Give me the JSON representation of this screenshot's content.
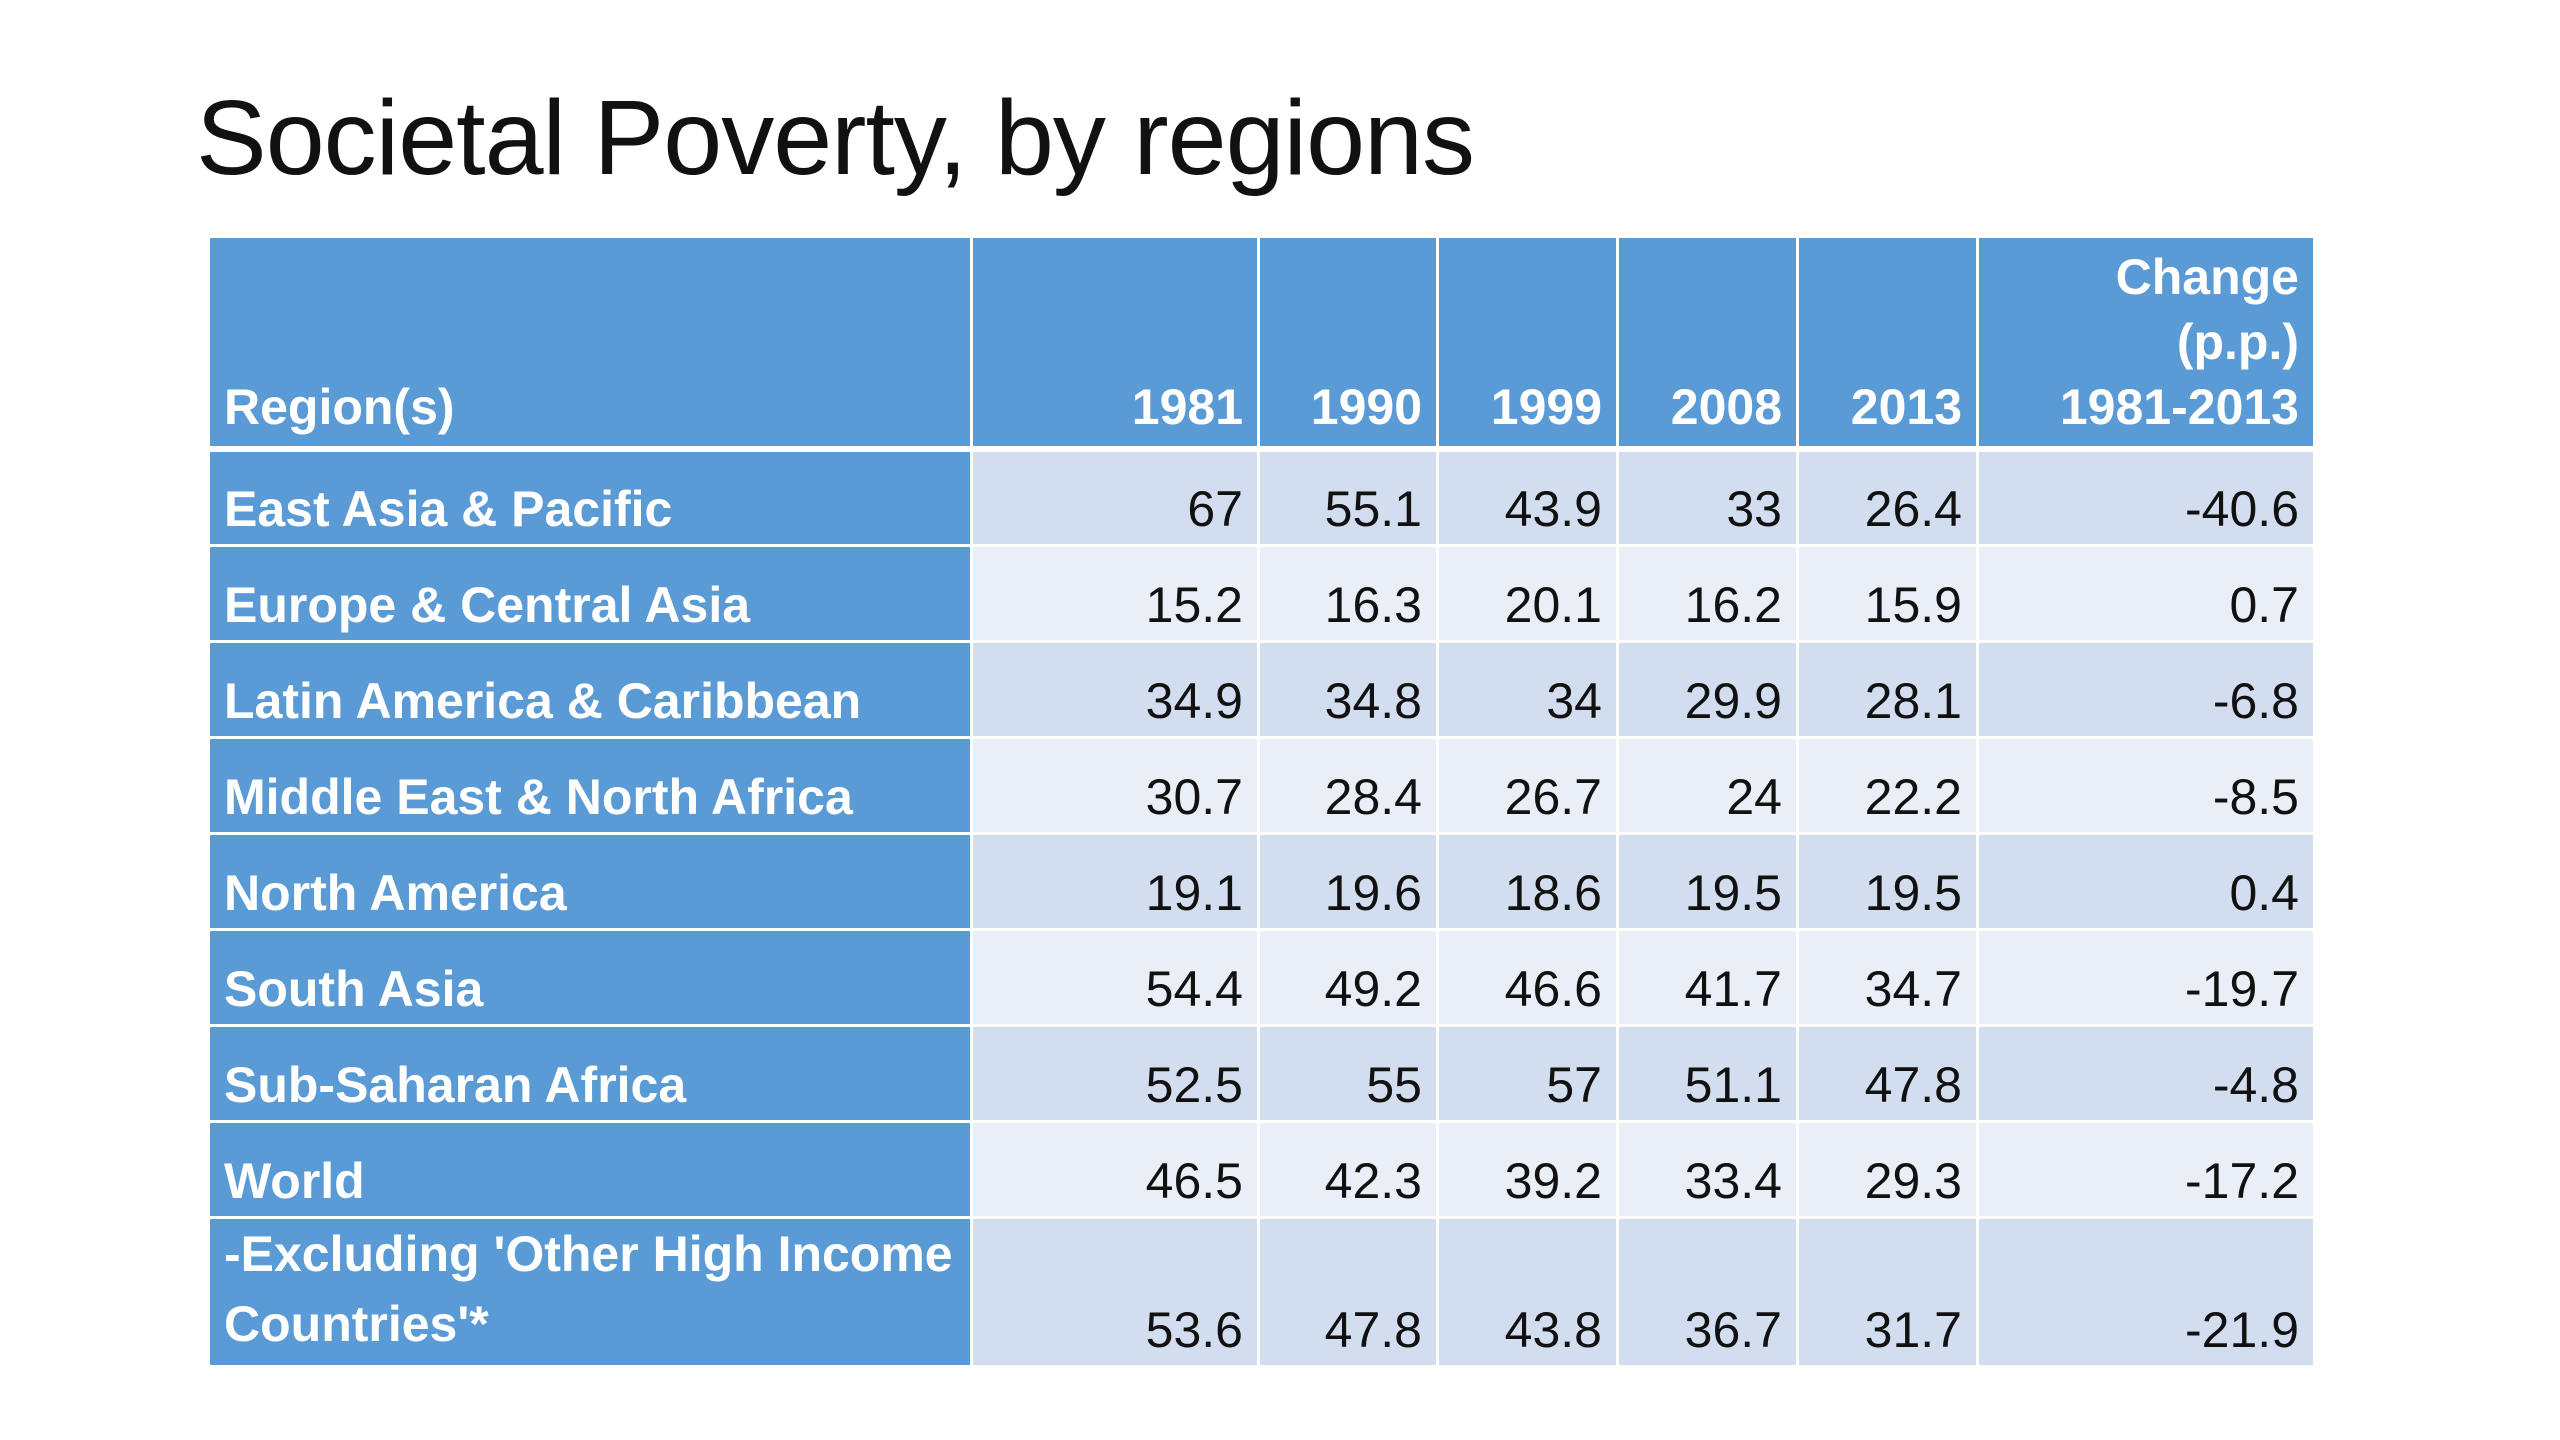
{
  "title": "Societal Poverty, by regions",
  "colors": {
    "header": "#5B9BD5",
    "row_odd": "#D2DEEF",
    "row_even": "#EAEFF7"
  },
  "table": {
    "headers": [
      "Region(s)",
      "1981",
      "1990",
      "1999",
      "2008",
      "2013",
      "Change (p.p.) 1981-2013"
    ],
    "change_header_lines": [
      "Change",
      "(p.p.)",
      "1981-2013"
    ],
    "rows": [
      {
        "region": "East Asia & Pacific",
        "values": [
          "67",
          "55.1",
          "43.9",
          "33",
          "26.4",
          "-40.6"
        ]
      },
      {
        "region": "Europe & Central Asia",
        "values": [
          "15.2",
          "16.3",
          "20.1",
          "16.2",
          "15.9",
          "0.7"
        ]
      },
      {
        "region": "Latin America & Caribbean",
        "values": [
          "34.9",
          "34.8",
          "34",
          "29.9",
          "28.1",
          "-6.8"
        ]
      },
      {
        "region": "Middle East & North Africa",
        "values": [
          "30.7",
          "28.4",
          "26.7",
          "24",
          "22.2",
          "-8.5"
        ]
      },
      {
        "region": "North America",
        "values": [
          "19.1",
          "19.6",
          "18.6",
          "19.5",
          "19.5",
          "0.4"
        ]
      },
      {
        "region": "South Asia",
        "values": [
          "54.4",
          "49.2",
          "46.6",
          "41.7",
          "34.7",
          "-19.7"
        ]
      },
      {
        "region": "Sub-Saharan Africa",
        "values": [
          "52.5",
          "55",
          "57",
          "51.1",
          "47.8",
          "-4.8"
        ]
      },
      {
        "region": "World",
        "values": [
          "46.5",
          "42.3",
          "39.2",
          "33.4",
          "29.3",
          "-17.2"
        ]
      },
      {
        "region": "-Excluding 'Other High Income Countries'*",
        "values": [
          "53.6",
          "47.8",
          "43.8",
          "36.7",
          "31.7",
          "-21.9"
        ]
      }
    ]
  }
}
